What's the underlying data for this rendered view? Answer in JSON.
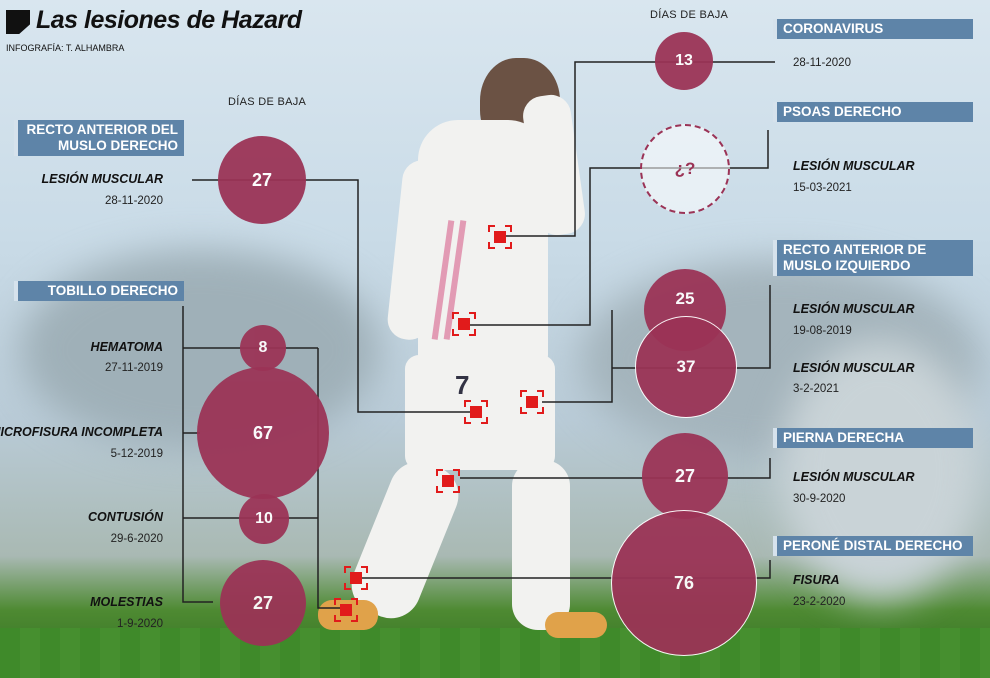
{
  "header": {
    "title": "Las lesiones de Hazard",
    "credit": "INFOGRAFÍA: T. ALHAMBRA"
  },
  "column_headers": {
    "left": "DÍAS DE BAJA",
    "right": "DÍAS DE BAJA"
  },
  "colors": {
    "bubble": "#9b3356",
    "section_bg": "#5e84a8",
    "marker": "#e11b1b"
  },
  "left": {
    "recto_anterior_derecho": {
      "title_line1": "RECTO ANTERIOR DEL",
      "title_line2": "MUSLO DERECHO",
      "injury": "LESIÓN MUSCULAR",
      "date": "28-11-2020",
      "days": "27"
    },
    "tobillo_derecho": {
      "title": "TOBILLO DERECHO",
      "items": [
        {
          "injury": "HEMATOMA",
          "date": "27-11-2019",
          "days": "8"
        },
        {
          "injury": "MICROFISURA INCOMPLETA",
          "date": "5-12-2019",
          "days": "67"
        },
        {
          "injury": "CONTUSIÓN",
          "date": "29-6-2020",
          "days": "10"
        },
        {
          "injury": "MOLESTIAS",
          "date": "1-9-2020",
          "days": "27"
        }
      ]
    }
  },
  "right": {
    "coronavirus": {
      "title": "CORONAVIRUS",
      "date": "28-11-2020",
      "days": "13"
    },
    "psoas": {
      "title": "PSOAS DERECHO",
      "injury": "LESIÓN MUSCULAR",
      "date": "15-03-2021",
      "days": "¿?"
    },
    "recto_izquierdo": {
      "title_line1": "RECTO ANTERIOR DE",
      "title_line2": "MUSLO IZQUIERDO",
      "items": [
        {
          "injury": "LESIÓN MUSCULAR",
          "date": "19-08-2019",
          "days": "25"
        },
        {
          "injury": "LESIÓN MUSCULAR",
          "date": "3-2-2021",
          "days": "37"
        }
      ]
    },
    "pierna_derecha": {
      "title": "PIERNA DERECHA",
      "injury": "LESIÓN MUSCULAR",
      "date": "30-9-2020",
      "days": "27"
    },
    "perone": {
      "title": "PERONÉ DISTAL DERECHO",
      "injury": "FISURA",
      "date": "23-2-2020",
      "days": "76"
    }
  },
  "player": {
    "shirt_number": "7"
  }
}
